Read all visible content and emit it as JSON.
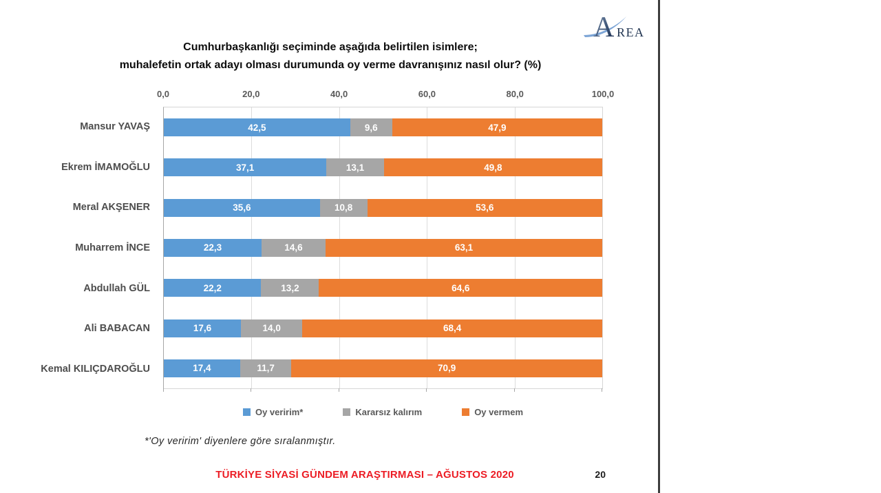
{
  "logo": {
    "initial": "A",
    "rest": "REA",
    "color": "#1f3350",
    "swoosh_color": "#6f9bd1"
  },
  "title": {
    "line1": "Cumhurbaşkanlığı seçiminde aşağıda belirtilen isimlere;",
    "line2": "muhalefetin ortak adayı olması durumunda oy verme davranışınız nasıl olur? (%)"
  },
  "chart_data": {
    "type": "bar",
    "orientation": "horizontal",
    "stacked": true,
    "xlim": [
      0,
      100
    ],
    "x_tick_labels": [
      "0,0",
      "20,0",
      "40,0",
      "60,0",
      "80,0",
      "100,0"
    ],
    "grid": true,
    "legend_position": "bottom",
    "categories": [
      "Mansur YAVAŞ",
      "Ekrem İMAMOĞLU",
      "Meral AKŞENER",
      "Muharrem İNCE",
      "Abdullah GÜL",
      "Ali BABACAN",
      "Kemal KILIÇDAROĞLU"
    ],
    "series": [
      {
        "name": "Oy veririm*",
        "color": "#5B9BD5",
        "values": [
          42.5,
          37.1,
          35.6,
          22.3,
          22.2,
          17.6,
          17.4
        ],
        "labels": [
          "42,5",
          "37,1",
          "35,6",
          "22,3",
          "22,2",
          "17,6",
          "17,4"
        ]
      },
      {
        "name": "Kararsız kalırım",
        "color": "#A6A6A6",
        "values": [
          9.6,
          13.1,
          10.8,
          14.6,
          13.2,
          14.0,
          11.7
        ],
        "labels": [
          "9,6",
          "13,1",
          "10,8",
          "14,6",
          "13,2",
          "14,0",
          "11,7"
        ]
      },
      {
        "name": "Oy vermem",
        "color": "#ED7D31",
        "values": [
          47.9,
          49.8,
          53.6,
          63.1,
          64.6,
          68.4,
          70.9
        ],
        "labels": [
          "47,9",
          "49,8",
          "53,6",
          "63,1",
          "64,6",
          "68,4",
          "70,9"
        ]
      }
    ]
  },
  "footnote": "*'Oy veririm' diyenlere göre sıralanmıştır.",
  "footer": {
    "report_title": "TÜRKİYE SİYASİ GÜNDEM ARAŞTIRMASI – AĞUSTOS 2020",
    "page_number": "20"
  }
}
